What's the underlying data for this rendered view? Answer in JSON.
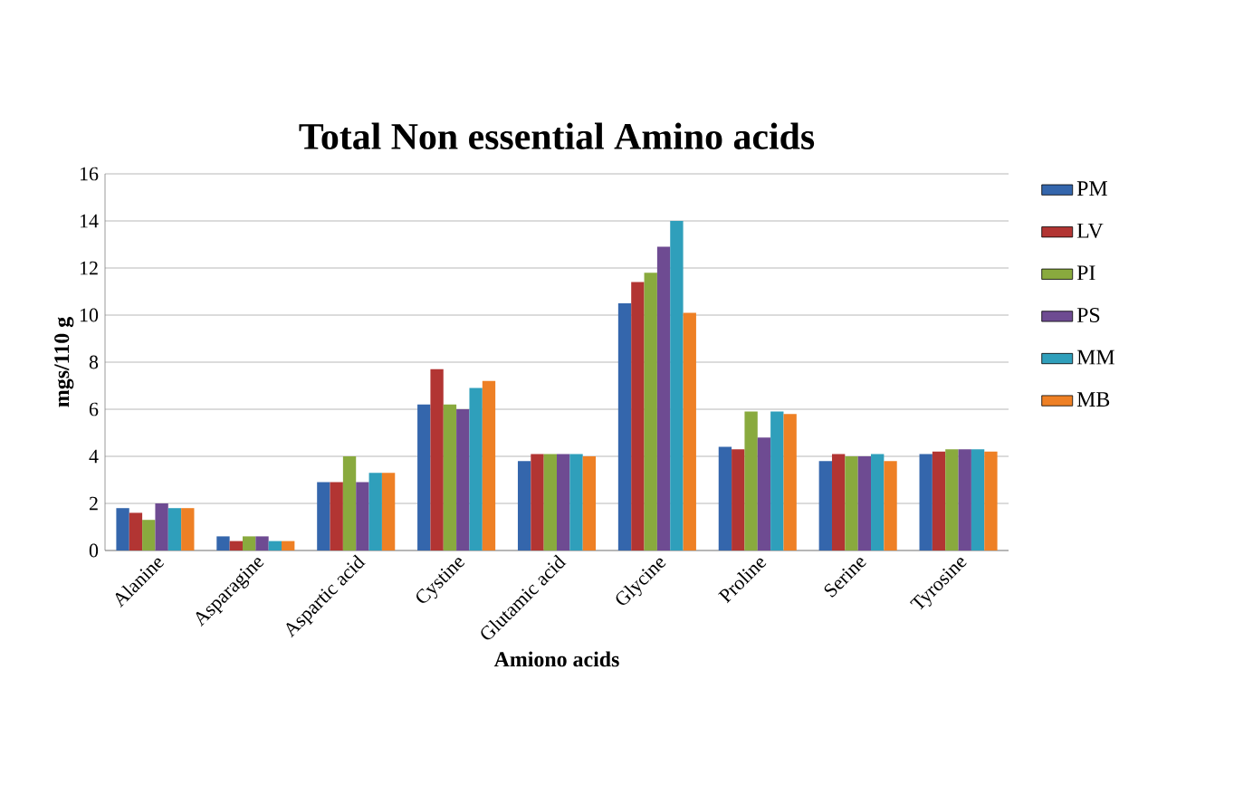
{
  "chart_data": {
    "type": "bar",
    "title": "Total Non essential Amino acids",
    "xlabel": "Amiono acids",
    "ylabel": "mgs/110 g",
    "categories": [
      "Alanine",
      "Asparagine",
      "Aspartic acid",
      "Cystine",
      "Glutamic acid",
      "Glycine",
      "Proline",
      "Serine",
      "Tyrosine"
    ],
    "series": [
      {
        "name": "PM",
        "color": "#3466ac",
        "values": [
          1.8,
          0.6,
          2.9,
          6.2,
          3.8,
          10.5,
          4.4,
          3.8,
          4.1
        ]
      },
      {
        "name": "LV",
        "color": "#b23533",
        "values": [
          1.6,
          0.4,
          2.9,
          7.7,
          4.1,
          11.4,
          4.3,
          4.1,
          4.2
        ]
      },
      {
        "name": "PI",
        "color": "#89aa3e",
        "values": [
          1.3,
          0.6,
          4.0,
          6.2,
          4.1,
          11.8,
          5.9,
          4.0,
          4.3
        ]
      },
      {
        "name": "PS",
        "color": "#6e4b92",
        "values": [
          2.0,
          0.6,
          2.9,
          6.0,
          4.1,
          12.9,
          4.8,
          4.0,
          4.3
        ]
      },
      {
        "name": "MM",
        "color": "#2f9fbb",
        "values": [
          1.8,
          0.4,
          3.3,
          6.9,
          4.1,
          14.0,
          5.9,
          4.1,
          4.3
        ]
      },
      {
        "name": "MB",
        "color": "#ee8025",
        "values": [
          1.8,
          0.4,
          3.3,
          7.2,
          4.0,
          10.1,
          5.8,
          3.8,
          4.2
        ]
      }
    ],
    "ylim": [
      0,
      16
    ],
    "yticks": [
      0,
      2,
      4,
      6,
      8,
      10,
      12,
      14,
      16
    ],
    "grid": "y",
    "legend": "right"
  }
}
